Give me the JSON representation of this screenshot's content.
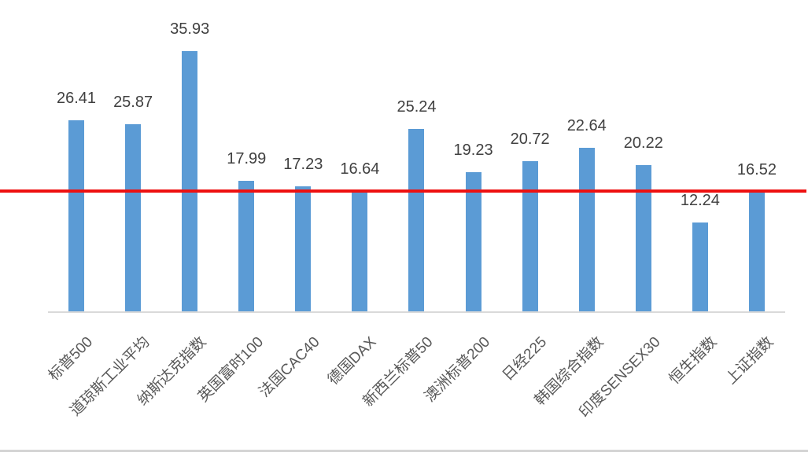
{
  "chart_data": {
    "type": "bar",
    "title": "",
    "categories": [
      "标普500",
      "道琼斯工业平均",
      "纳斯达克指数",
      "英国富时100",
      "法国CAC40",
      "德国DAX",
      "新西兰标普50",
      "澳洲标普200",
      "日经225",
      "韩国综合指数",
      "印度SENSEX30",
      "恒生指数",
      "上证指数"
    ],
    "values": [
      26.41,
      25.87,
      35.93,
      17.99,
      17.23,
      16.64,
      25.24,
      19.23,
      20.72,
      22.64,
      20.22,
      12.24,
      16.52
    ],
    "data_label_format": "0.00",
    "xlabel": "",
    "ylabel": "",
    "ylim": [
      0,
      43
    ],
    "grid": false,
    "legend": false,
    "data_labels_position": "outside-end",
    "category_label_rotation": -45,
    "bar_color": "#5B9BD5",
    "value_label_color": "#404040",
    "category_label_color": "#595959",
    "axis_line_color": "#D9D9D9",
    "bottom_divider_color": "#D5D5D5",
    "reference_line": {
      "color": "#EE1111",
      "value": 16.6,
      "full_width": true
    }
  }
}
